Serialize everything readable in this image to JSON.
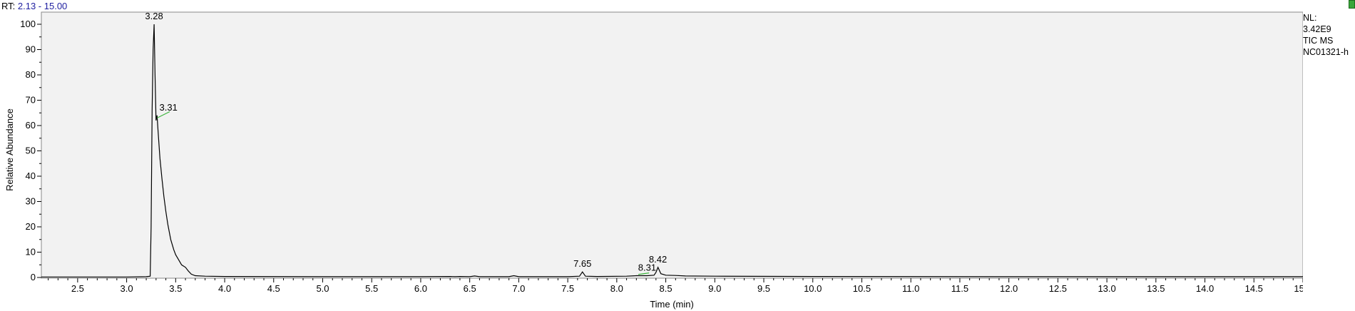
{
  "header": {
    "rt_label": "RT:",
    "rt_range": "2.13 - 15.00"
  },
  "info": {
    "nl_label": "NL:",
    "nl_value": "3.42E9",
    "scan_type": "TIC  MS",
    "sample": "NC01321-h"
  },
  "icons": {
    "corner": "green-status-icon"
  },
  "colors": {
    "trace": "#000000",
    "plot_bg": "#f2f2f2",
    "baseline_marker": "#3cb43c",
    "rt_value": "#1f1fa0"
  },
  "chart_data": {
    "type": "line",
    "xlabel": "Time (min)",
    "ylabel": "Relative Abundance",
    "xlim": [
      2.13,
      15.0
    ],
    "ylim": [
      0,
      100
    ],
    "xticks": [
      "2.5",
      "3.0",
      "3.5",
      "4.0",
      "4.5",
      "5.0",
      "5.5",
      "6.0",
      "6.5",
      "7.0",
      "7.5",
      "8.0",
      "8.5",
      "9.0",
      "9.5",
      "10.0",
      "10.5",
      "11.0",
      "11.5",
      "12.0",
      "12.5",
      "13.0",
      "13.5",
      "14.0",
      "14.5",
      "15.0"
    ],
    "yticks": [
      "0",
      "10",
      "20",
      "30",
      "40",
      "50",
      "60",
      "70",
      "80",
      "90",
      "100"
    ],
    "grid": false,
    "series": [
      {
        "x": [
          2.13,
          3.0,
          3.2,
          3.24,
          3.25,
          3.26,
          3.27,
          3.28,
          3.29,
          3.3,
          3.31,
          3.32,
          3.34,
          3.36,
          3.38,
          3.4,
          3.42,
          3.45,
          3.48,
          3.5,
          3.53,
          3.56,
          3.6,
          3.63,
          3.66,
          3.7,
          3.8,
          4.0,
          5.0,
          6.0,
          6.3,
          6.35,
          6.4,
          6.5,
          6.55,
          6.6,
          6.9,
          6.95,
          7.0,
          7.5,
          7.62,
          7.65,
          7.68,
          7.8,
          8.1,
          8.2,
          8.31,
          8.38,
          8.4,
          8.42,
          8.45,
          8.5,
          8.6,
          8.7,
          9.0,
          10.0,
          12.0,
          15.0
        ],
        "y": [
          0.2,
          0.2,
          0.3,
          0.5,
          20,
          66,
          90,
          100,
          80,
          62,
          64,
          58,
          47,
          39,
          32,
          26,
          21,
          15,
          11,
          9,
          7,
          5,
          4,
          2.5,
          1.3,
          0.7,
          0.5,
          0.4,
          0.3,
          0.3,
          0.4,
          0.3,
          0.4,
          0.3,
          0.6,
          0.3,
          0.3,
          0.7,
          0.3,
          0.3,
          0.5,
          2.2,
          0.5,
          0.4,
          0.5,
          0.7,
          0.7,
          0.9,
          2.0,
          4.0,
          1.5,
          0.9,
          0.8,
          0.6,
          0.5,
          0.4,
          0.3,
          0.3
        ]
      }
    ],
    "annotations": [
      {
        "label": "3.28",
        "x": 3.28,
        "y": 100
      },
      {
        "label": "3.31",
        "x": 3.31,
        "y": 64
      },
      {
        "label": "7.65",
        "x": 7.65,
        "y": 2.2
      },
      {
        "label": "8.31",
        "x": 8.31,
        "y": 0.7
      },
      {
        "label": "8.42",
        "x": 8.42,
        "y": 4.0
      }
    ]
  }
}
